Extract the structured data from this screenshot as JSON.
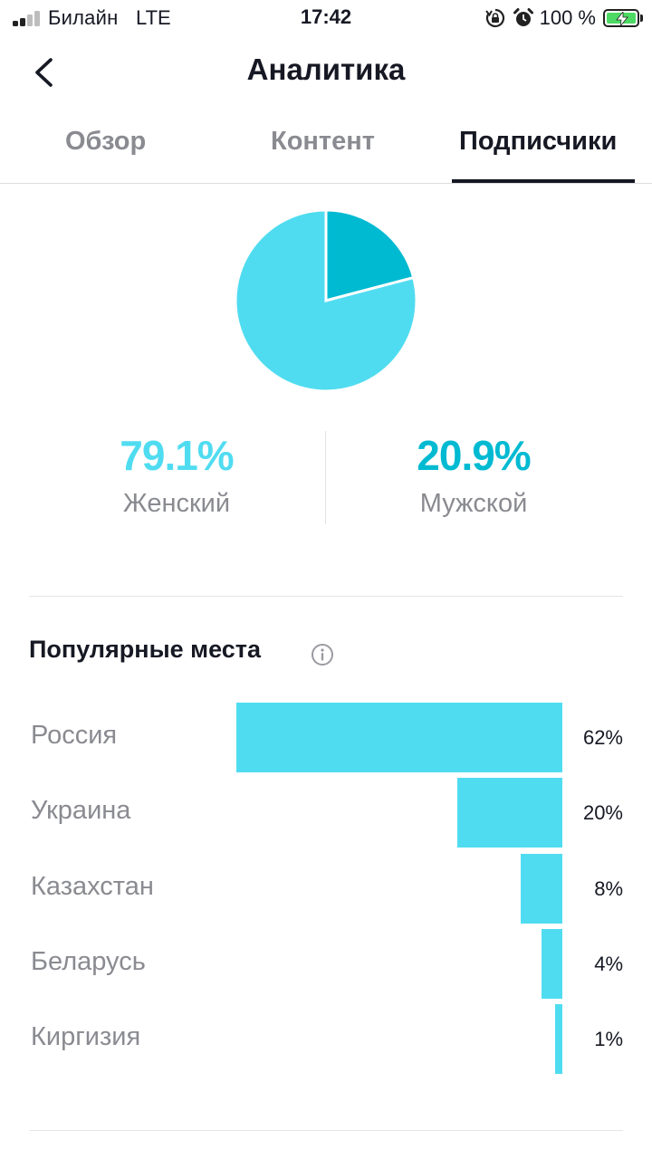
{
  "status_bar": {
    "carrier": "Билайн",
    "network": "LTE",
    "time": "17:42",
    "battery": "100 %",
    "signal_icon": "signal-bars-icon",
    "orientation_lock_icon": "orientation-lock-icon",
    "alarm_icon": "alarm-clock-icon",
    "battery_icon": "battery-charging-icon"
  },
  "header": {
    "title": "Аналитика",
    "back_icon": "chevron-left-icon"
  },
  "tabs": [
    {
      "label": "Обзор",
      "active": false
    },
    {
      "label": "Контент",
      "active": false
    },
    {
      "label": "Подписчики",
      "active": true
    }
  ],
  "gender": {
    "female": {
      "value": "79.1%",
      "label": "Женский",
      "color": "#50dcf0"
    },
    "male": {
      "value": "20.9%",
      "label": "Мужской",
      "color": "#00bad2"
    }
  },
  "places": {
    "title": "Популярные места",
    "info_icon": "info-icon",
    "bar_color": "#50dcf0"
  },
  "chart_data": [
    {
      "type": "pie",
      "categories": [
        "Женский",
        "Мужской"
      ],
      "values": [
        79.1,
        20.9
      ],
      "colors": [
        "#50dcf0",
        "#00bad2"
      ]
    },
    {
      "type": "bar",
      "orientation": "horizontal",
      "title": "Популярные места",
      "categories": [
        "Россия",
        "Украина",
        "Казахстан",
        "Беларусь",
        "Киргизия"
      ],
      "values": [
        62,
        20,
        8,
        4,
        1
      ],
      "value_labels": [
        "62%",
        "20%",
        "8%",
        "4%",
        "1%"
      ],
      "xlim": [
        0,
        62
      ],
      "color": "#50dcf0"
    }
  ]
}
